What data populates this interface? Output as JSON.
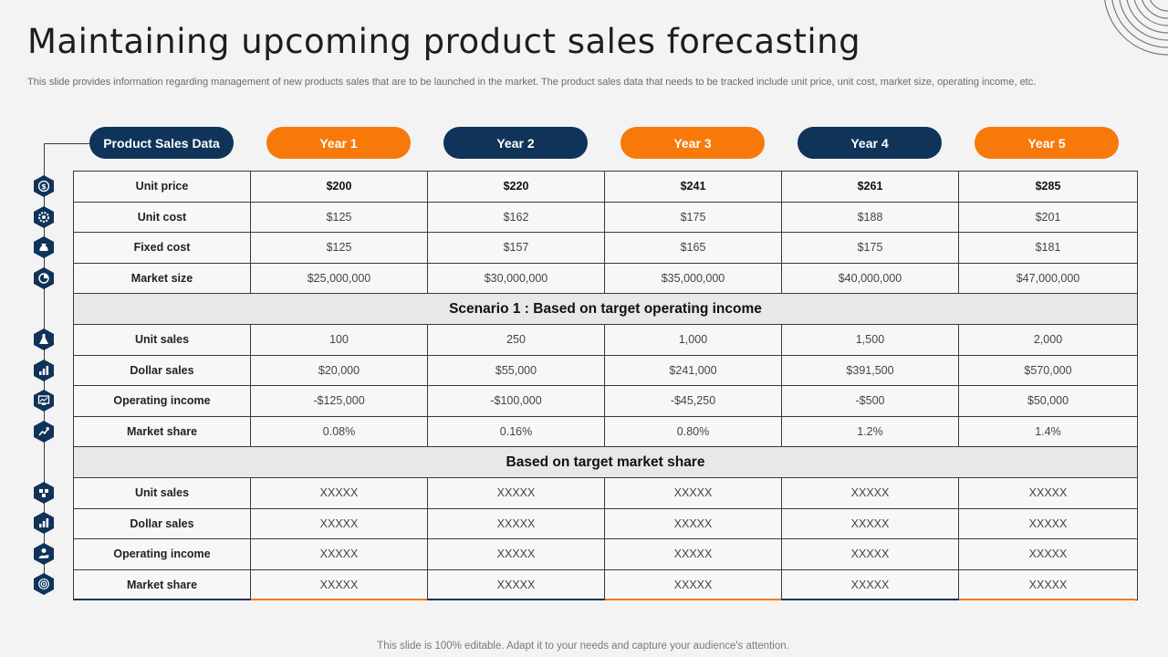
{
  "title": "Maintaining upcoming product sales forecasting",
  "subtitle": "This slide provides information regarding management of new products sales that are to be launched in the market. The product sales data that needs to be tracked include unit price, unit cost, market size, operating income, etc.",
  "header": {
    "label": "Product Sales Data",
    "years": [
      "Year 1",
      "Year 2",
      "Year 3",
      "Year 4",
      "Year 5"
    ]
  },
  "colors": {
    "navy": "#0f3359",
    "orange": "#f7790a"
  },
  "base_rows": [
    {
      "label": "Unit price",
      "values": [
        "$200",
        "$220",
        "$241",
        "$261",
        "$285"
      ]
    },
    {
      "label": "Unit cost",
      "values": [
        "$125",
        "$162",
        "$175",
        "$188",
        "$201"
      ]
    },
    {
      "label": "Fixed cost",
      "values": [
        "$125",
        "$157",
        "$165",
        "$175",
        "$181"
      ]
    },
    {
      "label": "Market size",
      "values": [
        "$25,000,000",
        "$30,000,000",
        "$35,000,000",
        "$40,000,000",
        "$47,000,000"
      ]
    }
  ],
  "scenario1": {
    "heading": "Scenario 1 : Based on target operating income",
    "rows": [
      {
        "label": "Unit sales",
        "values": [
          "100",
          "250",
          "1,000",
          "1,500",
          "2,000"
        ]
      },
      {
        "label": "Dollar sales",
        "values": [
          "$20,000",
          "$55,000",
          "$241,000",
          "$391,500",
          "$570,000"
        ]
      },
      {
        "label": "Operating income",
        "values": [
          "-$125,000",
          "-$100,000",
          "-$45,250",
          "-$500",
          "$50,000"
        ]
      },
      {
        "label": "Market share",
        "values": [
          "0.08%",
          "0.16%",
          "0.80%",
          "1.2%",
          "1.4%"
        ]
      }
    ]
  },
  "scenario2": {
    "heading": "Based on target market share",
    "rows": [
      {
        "label": "Unit sales",
        "values": [
          "XXXXX",
          "XXXXX",
          "XXXXX",
          "XXXXX",
          "XXXXX"
        ]
      },
      {
        "label": "Dollar sales",
        "values": [
          "XXXXX",
          "XXXXX",
          "XXXXX",
          "XXXXX",
          "XXXXX"
        ]
      },
      {
        "label": "Operating income",
        "values": [
          "XXXXX",
          "XXXXX",
          "XXXXX",
          "XXXXX",
          "XXXXX"
        ]
      },
      {
        "label": "Market share",
        "values": [
          "XXXXX",
          "XXXXX",
          "XXXXX",
          "XXXXX",
          "XXXXX"
        ]
      }
    ]
  },
  "icons": [
    "dollar-coin-icon",
    "gear-dollar-icon",
    "money-bag-icon",
    "pie-chart-icon",
    "flask-icon",
    "bar-chart-icon",
    "monitor-chart-icon",
    "growth-chart-icon",
    "network-icon",
    "bar-chart-icon",
    "hand-money-icon",
    "target-dollar-icon"
  ],
  "footer": "This slide is 100% editable. Adapt it to your needs and capture your audience's attention."
}
